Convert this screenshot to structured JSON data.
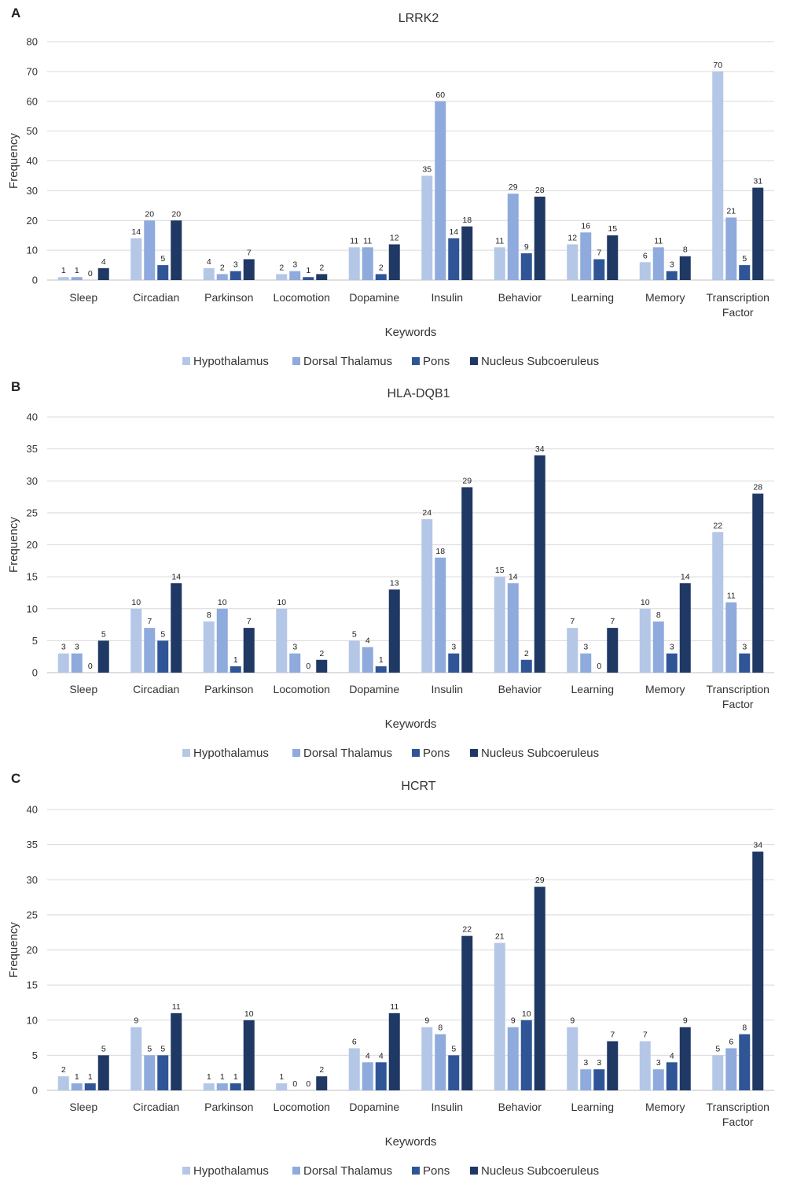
{
  "chart_data": [
    {
      "panel": "A",
      "type": "bar",
      "title": "LRRK2",
      "xlabel": "Keywords",
      "ylabel": "Frequency",
      "ylim": [
        0,
        80
      ],
      "yticks": [
        "0",
        "10",
        "20",
        "30",
        "40",
        "50",
        "60",
        "70",
        "80"
      ],
      "categories": [
        "Sleep",
        "Circadian",
        "Parkinson",
        "Locomotion",
        "Dopamine",
        "Insulin",
        "Behavior",
        "Learning",
        "Memory",
        "Transcription Factor"
      ],
      "series": [
        {
          "name": "Hypothalamus",
          "color": "#b4c7e7",
          "values": [
            1,
            14,
            4,
            2,
            11,
            35,
            11,
            12,
            6,
            70
          ]
        },
        {
          "name": "Dorsal Thalamus",
          "color": "#8faadc",
          "values": [
            1,
            20,
            2,
            3,
            11,
            60,
            29,
            16,
            11,
            21
          ]
        },
        {
          "name": "Pons",
          "color": "#2f5597",
          "values": [
            0,
            5,
            3,
            1,
            2,
            14,
            9,
            7,
            3,
            5
          ]
        },
        {
          "name": "Nucleus Subcoeruleus",
          "color": "#1f3864",
          "values": [
            4,
            20,
            7,
            2,
            12,
            18,
            28,
            15,
            8,
            31
          ]
        }
      ],
      "grid": true,
      "legend": "bottom"
    },
    {
      "panel": "B",
      "type": "bar",
      "title": "HLA-DQB1",
      "xlabel": "Keywords",
      "ylabel": "Frequency",
      "ylim": [
        0,
        40
      ],
      "yticks": [
        "0",
        "5",
        "10",
        "15",
        "20",
        "25",
        "30",
        "35",
        "40"
      ],
      "categories": [
        "Sleep",
        "Circadian",
        "Parkinson",
        "Locomotion",
        "Dopamine",
        "Insulin",
        "Behavior",
        "Learning",
        "Memory",
        "Transcription Factor"
      ],
      "series": [
        {
          "name": "Hypothalamus",
          "color": "#b4c7e7",
          "values": [
            3,
            10,
            8,
            10,
            5,
            24,
            15,
            7,
            10,
            22
          ]
        },
        {
          "name": "Dorsal Thalamus",
          "color": "#8faadc",
          "values": [
            3,
            7,
            10,
            3,
            4,
            18,
            14,
            3,
            8,
            11
          ]
        },
        {
          "name": "Pons",
          "color": "#2f5597",
          "values": [
            0,
            5,
            1,
            0,
            1,
            3,
            2,
            0,
            3,
            3
          ]
        },
        {
          "name": "Nucleus Subcoeruleus",
          "color": "#1f3864",
          "values": [
            5,
            14,
            7,
            2,
            13,
            29,
            34,
            7,
            14,
            28
          ]
        }
      ],
      "grid": true,
      "legend": "bottom"
    },
    {
      "panel": "C",
      "type": "bar",
      "title": "HCRT",
      "xlabel": "Keywords",
      "ylabel": "Frequency",
      "ylim": [
        0,
        40
      ],
      "yticks": [
        "0",
        "5",
        "10",
        "15",
        "20",
        "25",
        "30",
        "35",
        "40"
      ],
      "categories": [
        "Sleep",
        "Circadian",
        "Parkinson",
        "Locomotion",
        "Dopamine",
        "Insulin",
        "Behavior",
        "Learning",
        "Memory",
        "Transcription Factor"
      ],
      "series": [
        {
          "name": "Hypothalamus",
          "color": "#b4c7e7",
          "values": [
            2,
            9,
            1,
            1,
            6,
            9,
            21,
            9,
            7,
            5
          ]
        },
        {
          "name": "Dorsal Thalamus",
          "color": "#8faadc",
          "values": [
            1,
            5,
            1,
            0,
            4,
            8,
            9,
            3,
            3,
            6
          ]
        },
        {
          "name": "Pons",
          "color": "#2f5597",
          "values": [
            1,
            5,
            1,
            0,
            4,
            5,
            10,
            3,
            4,
            8
          ]
        },
        {
          "name": "Nucleus Subcoeruleus",
          "color": "#1f3864",
          "values": [
            5,
            11,
            10,
            2,
            11,
            22,
            29,
            7,
            9,
            34
          ]
        }
      ],
      "grid": true,
      "legend": "bottom"
    }
  ]
}
